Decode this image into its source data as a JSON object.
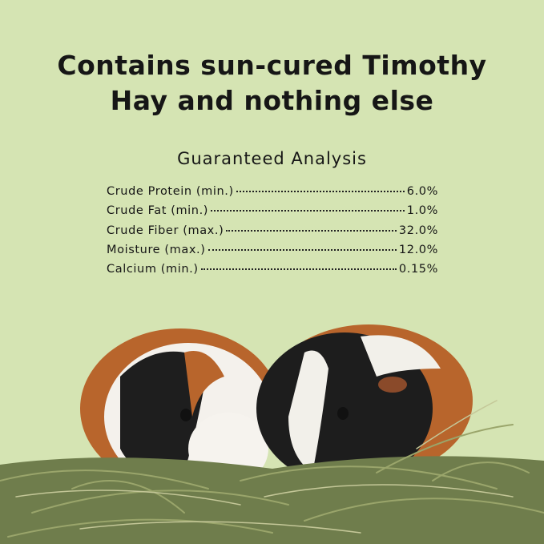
{
  "headline": {
    "line1": "Contains sun-cured Timothy",
    "line2": "Hay and nothing else"
  },
  "guaranteed_analysis": {
    "title": "Guaranteed Analysis",
    "rows": [
      {
        "label": "Crude Protein (min.)",
        "value": "6.0%"
      },
      {
        "label": "Crude Fat (min.)",
        "value": "1.0%"
      },
      {
        "label": "Crude Fiber (max.)",
        "value": "32.0%"
      },
      {
        "label": "Moisture (max.)",
        "value": "12.0%"
      },
      {
        "label": "Calcium (min.)",
        "value": "0.15%"
      }
    ]
  },
  "colors": {
    "background": "#d5e4b3",
    "text": "#161616"
  },
  "image": "two guinea pigs in timothy hay"
}
